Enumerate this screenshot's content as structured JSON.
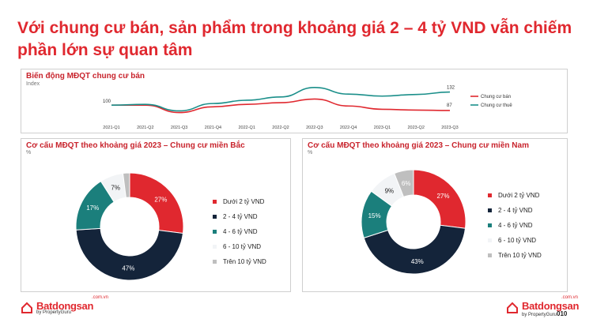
{
  "title": "Với chung cư bán, sản phẩm trong khoảng giá 2 – 4 tỷ VND vẫn chiếm phần lớn sự quan tâm",
  "colors": {
    "red": "#e0282f",
    "navy": "#14243a",
    "teal": "#1b7f7c",
    "light": "#f2f4f6",
    "grey": "#bfbfbf"
  },
  "chart_data": [
    {
      "type": "line",
      "title": "Biến động MĐQT chung cư bán",
      "ylabel": "Index",
      "x": [
        "2021-Q1",
        "2021-Q2",
        "2021-Q3",
        "2021-Q4",
        "2022-Q1",
        "2022-Q2",
        "2022-Q3",
        "2022-Q4",
        "2023-Q1",
        "2023-Q2",
        "2023-Q3"
      ],
      "ylim": [
        60,
        160
      ],
      "series": [
        {
          "name": "Chung cư bán",
          "color": "#e0282f",
          "values": [
            100,
            100,
            82,
            96,
            102,
            106,
            115,
            98,
            90,
            88,
            87
          ]
        },
        {
          "name": "Chung cư thuê",
          "color": "#1b8f8a",
          "values": [
            100,
            102,
            86,
            104,
            112,
            120,
            143,
            127,
            122,
            126,
            132
          ]
        }
      ],
      "data_labels": {
        "start": "100",
        "end_rent": "132",
        "end_sale": "87"
      },
      "legend": "right"
    },
    {
      "type": "pie",
      "title": "Cơ cấu MĐQT theo khoảng giá 2023 – Chung cư miền Bắc",
      "unit": "%",
      "categories": [
        "Dưới 2 tỷ VND",
        "2 - 4 tỷ VND",
        "4 - 6 tỷ VND",
        "6 - 10 tỷ VND",
        "Trên 10 tỷ VND"
      ],
      "values": [
        27,
        47,
        17,
        7,
        2
      ],
      "labels": [
        "27%",
        "47%",
        "17%",
        "7%",
        ""
      ],
      "colors": [
        "#e0282f",
        "#14243a",
        "#1b7f7c",
        "#f2f4f6",
        "#bfbfbf"
      ],
      "legend": "right"
    },
    {
      "type": "pie",
      "title": "Cơ cấu MĐQT theo khoảng giá 2023 – Chung cư miền Nam",
      "unit": "%",
      "categories": [
        "Dưới 2 tỷ VND",
        "2 - 4 tỷ VND",
        "4 - 6 tỷ VND",
        "6 - 10 tỷ VND",
        "Trên 10 tỷ VND"
      ],
      "values": [
        27,
        43,
        15,
        9,
        6
      ],
      "labels": [
        "27%",
        "43%",
        "15%",
        "9%",
        "6%"
      ],
      "colors": [
        "#e0282f",
        "#14243a",
        "#1b7f7c",
        "#f2f4f6",
        "#bfbfbf"
      ],
      "legend": "right"
    }
  ],
  "footer": {
    "brand": "Batdongsan",
    "domain": ".com.vn",
    "sub": "by PropertyGuru",
    "page": "010"
  }
}
